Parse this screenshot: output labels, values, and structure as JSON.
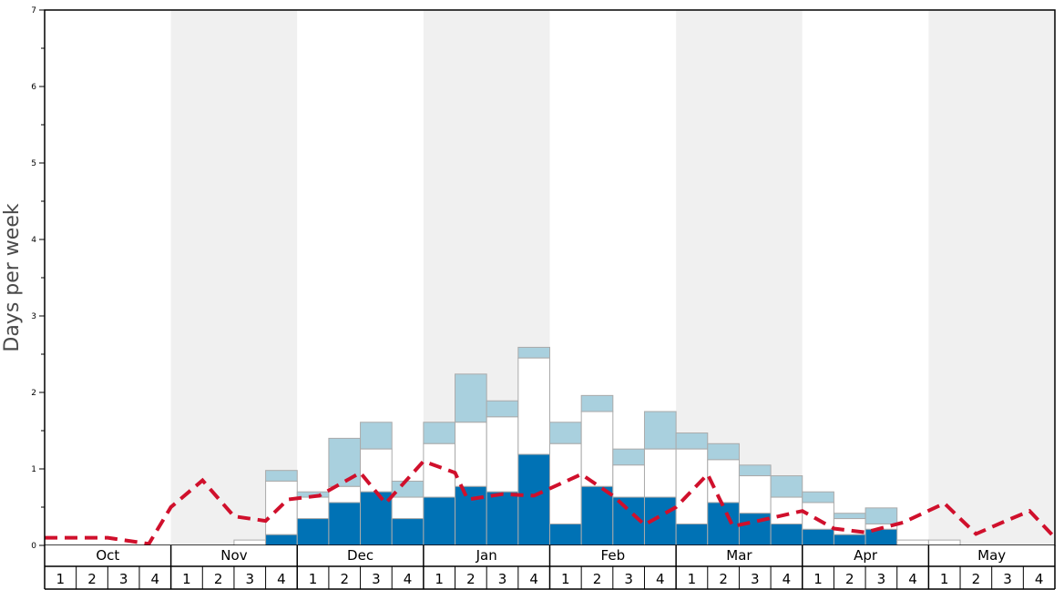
{
  "chart_data": {
    "type": "bar",
    "ylabel": "Days per week",
    "ylim": [
      0,
      7
    ],
    "y_ticks": [
      "0",
      "1",
      "2",
      "3",
      "4",
      "5",
      "6",
      "7"
    ],
    "months": [
      "Oct",
      "Nov",
      "Dec",
      "Jan",
      "Feb",
      "Mar",
      "Apr",
      "May"
    ],
    "weeks_per_month": [
      "1",
      "2",
      "3",
      "4"
    ],
    "shaded_months": [
      "Nov",
      "Jan",
      "Mar",
      "May"
    ],
    "colors": {
      "dark": "#0072b5",
      "light": "#a9d0de",
      "white": "#ffffff",
      "shade": "#f0f0f0",
      "dashed_line": "#d0102c",
      "bar_edge": "#aaaaaa"
    },
    "series": [
      {
        "values": [
          0,
          0,
          0,
          0,
          0,
          0,
          0,
          0.14,
          0.35,
          0.56,
          0.7,
          0.35,
          0.63,
          0.77,
          0.7,
          1.19,
          0.28,
          0.77,
          0.63,
          0.63,
          0.28,
          0.56,
          0.42,
          0.28,
          0.21,
          0.14,
          0.21,
          0,
          0,
          0,
          0,
          0
        ]
      },
      {
        "values": [
          0,
          0,
          0,
          0,
          0,
          0,
          0.07,
          0.84,
          0.63,
          0.77,
          1.26,
          0.63,
          1.33,
          1.61,
          1.68,
          2.45,
          1.33,
          1.75,
          1.05,
          1.26,
          1.26,
          1.12,
          0.91,
          0.63,
          0.56,
          0.35,
          0.28,
          0.07,
          0.07,
          0,
          0,
          0
        ]
      },
      {
        "values": [
          0,
          0,
          0,
          0,
          0,
          0,
          0.07,
          0.98,
          0.7,
          1.4,
          1.61,
          0.84,
          1.61,
          2.24,
          1.89,
          2.59,
          1.61,
          1.96,
          1.26,
          1.75,
          1.47,
          1.33,
          1.05,
          0.91,
          0.7,
          0.42,
          0.49,
          0.07,
          0.07,
          0,
          0,
          0
        ]
      },
      {
        "values": [
          0.1,
          0.1,
          0.1,
          0.02,
          0.5,
          0.85,
          0.38,
          0.32,
          0.6,
          0.65,
          0.95,
          0.55,
          1.1,
          0.95,
          0.6,
          0.67,
          0.65,
          0.93,
          0.65,
          0.27,
          0.5,
          0.93,
          0.25,
          0.35,
          0.45,
          0.22,
          0.17,
          0.3,
          0.55,
          0.15,
          0.33,
          0.45
        ]
      }
    ],
    "dashed_line_points": [
      [
        0,
        0.1
      ],
      [
        2,
        0.1
      ],
      [
        3.3,
        0.02
      ],
      [
        4.0,
        0.5
      ],
      [
        5.0,
        0.85
      ],
      [
        6.0,
        0.38
      ],
      [
        7.0,
        0.32
      ],
      [
        7.7,
        0.6
      ],
      [
        8.7,
        0.65
      ],
      [
        10.0,
        0.95
      ],
      [
        10.8,
        0.55
      ],
      [
        12.0,
        1.1
      ],
      [
        13.0,
        0.95
      ],
      [
        13.4,
        0.6
      ],
      [
        14.5,
        0.67
      ],
      [
        15.5,
        0.65
      ],
      [
        17.0,
        0.93
      ],
      [
        18.0,
        0.65
      ],
      [
        19.0,
        0.27
      ],
      [
        20.0,
        0.5
      ],
      [
        21.0,
        0.93
      ],
      [
        21.8,
        0.25
      ],
      [
        22.6,
        0.32
      ],
      [
        24.0,
        0.45
      ],
      [
        25.0,
        0.22
      ],
      [
        26.0,
        0.17
      ],
      [
        27.2,
        0.3
      ],
      [
        28.5,
        0.55
      ],
      [
        29.5,
        0.15
      ],
      [
        30.5,
        0.33
      ],
      [
        31.2,
        0.45
      ],
      [
        32.0,
        0.1
      ]
    ]
  }
}
